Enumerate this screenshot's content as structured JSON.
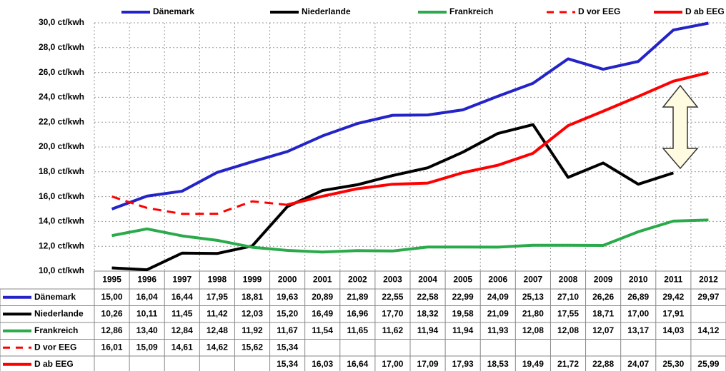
{
  "chart_data": {
    "type": "line",
    "categories": [
      "1995",
      "1996",
      "1997",
      "1998",
      "1999",
      "2000",
      "2001",
      "2002",
      "2003",
      "2004",
      "2005",
      "2006",
      "2007",
      "2008",
      "2009",
      "2010",
      "2011",
      "2012"
    ],
    "ylim": [
      10,
      30
    ],
    "yticks": [
      {
        "value": 10,
        "label": "10,0 ct/kwh"
      },
      {
        "value": 12,
        "label": "12,0 ct/kwh"
      },
      {
        "value": 14,
        "label": "14,0 ct/kwh"
      },
      {
        "value": 16,
        "label": "16,0 ct/kwh"
      },
      {
        "value": 18,
        "label": "18,0 ct/kwh"
      },
      {
        "value": 20,
        "label": "20,0 ct/kwh"
      },
      {
        "value": 22,
        "label": "22,0 ct/kwh"
      },
      {
        "value": 24,
        "label": "24,0 ct/kwh"
      },
      {
        "value": 26,
        "label": "26,0 ct/kwh"
      },
      {
        "value": 28,
        "label": "28,0 ct/kwh"
      },
      {
        "value": 30,
        "label": "30,0 ct/kwh"
      }
    ],
    "grid": true,
    "legend": "top",
    "series": [
      {
        "name": "Dänemark",
        "color": "#2323c8",
        "dashed": false,
        "values": [
          15.0,
          16.04,
          16.44,
          17.95,
          18.81,
          19.63,
          20.89,
          21.89,
          22.55,
          22.58,
          22.99,
          24.09,
          25.13,
          27.1,
          26.26,
          26.89,
          29.42,
          29.97
        ],
        "value_labels": [
          "15,00",
          "16,04",
          "16,44",
          "17,95",
          "18,81",
          "19,63",
          "20,89",
          "21,89",
          "22,55",
          "22,58",
          "22,99",
          "24,09",
          "25,13",
          "27,10",
          "26,26",
          "26,89",
          "29,42",
          "29,97"
        ]
      },
      {
        "name": "Niederlande",
        "color": "#000000",
        "dashed": false,
        "values": [
          10.26,
          10.11,
          11.45,
          11.42,
          12.03,
          15.2,
          16.49,
          16.96,
          17.7,
          18.32,
          19.58,
          21.09,
          21.8,
          17.55,
          18.71,
          17.0,
          17.91,
          null
        ],
        "value_labels": [
          "10,26",
          "10,11",
          "11,45",
          "11,42",
          "12,03",
          "15,20",
          "16,49",
          "16,96",
          "17,70",
          "18,32",
          "19,58",
          "21,09",
          "21,80",
          "17,55",
          "18,71",
          "17,00",
          "17,91",
          null
        ]
      },
      {
        "name": "Frankreich",
        "color": "#2aaa4a",
        "dashed": false,
        "values": [
          12.86,
          13.4,
          12.84,
          12.48,
          11.92,
          11.67,
          11.54,
          11.65,
          11.62,
          11.94,
          11.94,
          11.93,
          12.08,
          12.08,
          12.07,
          13.17,
          14.03,
          14.12
        ],
        "value_labels": [
          "12,86",
          "13,40",
          "12,84",
          "12,48",
          "11,92",
          "11,67",
          "11,54",
          "11,65",
          "11,62",
          "11,94",
          "11,94",
          "11,93",
          "12,08",
          "12,08",
          "12,07",
          "13,17",
          "14,03",
          "14,12"
        ]
      },
      {
        "name": "D vor EEG",
        "color": "#ff0000",
        "dashed": true,
        "values": [
          16.01,
          15.09,
          14.61,
          14.62,
          15.62,
          15.34,
          null,
          null,
          null,
          null,
          null,
          null,
          null,
          null,
          null,
          null,
          null,
          null
        ],
        "value_labels": [
          "16,01",
          "15,09",
          "14,61",
          "14,62",
          "15,62",
          "15,34",
          null,
          null,
          null,
          null,
          null,
          null,
          null,
          null,
          null,
          null,
          null,
          null
        ]
      },
      {
        "name": "D ab  EEG",
        "color": "#ff0000",
        "dashed": false,
        "values": [
          null,
          null,
          null,
          null,
          null,
          15.34,
          16.03,
          16.64,
          17.0,
          17.09,
          17.93,
          18.53,
          19.49,
          21.72,
          22.88,
          24.07,
          25.3,
          25.99
        ],
        "value_labels": [
          null,
          null,
          null,
          null,
          null,
          "15,34",
          "16,03",
          "16,64",
          "17,00",
          "17,09",
          "17,93",
          "18,53",
          "19,49",
          "21,72",
          "22,88",
          "24,07",
          "25,30",
          "25,99"
        ]
      }
    ]
  }
}
